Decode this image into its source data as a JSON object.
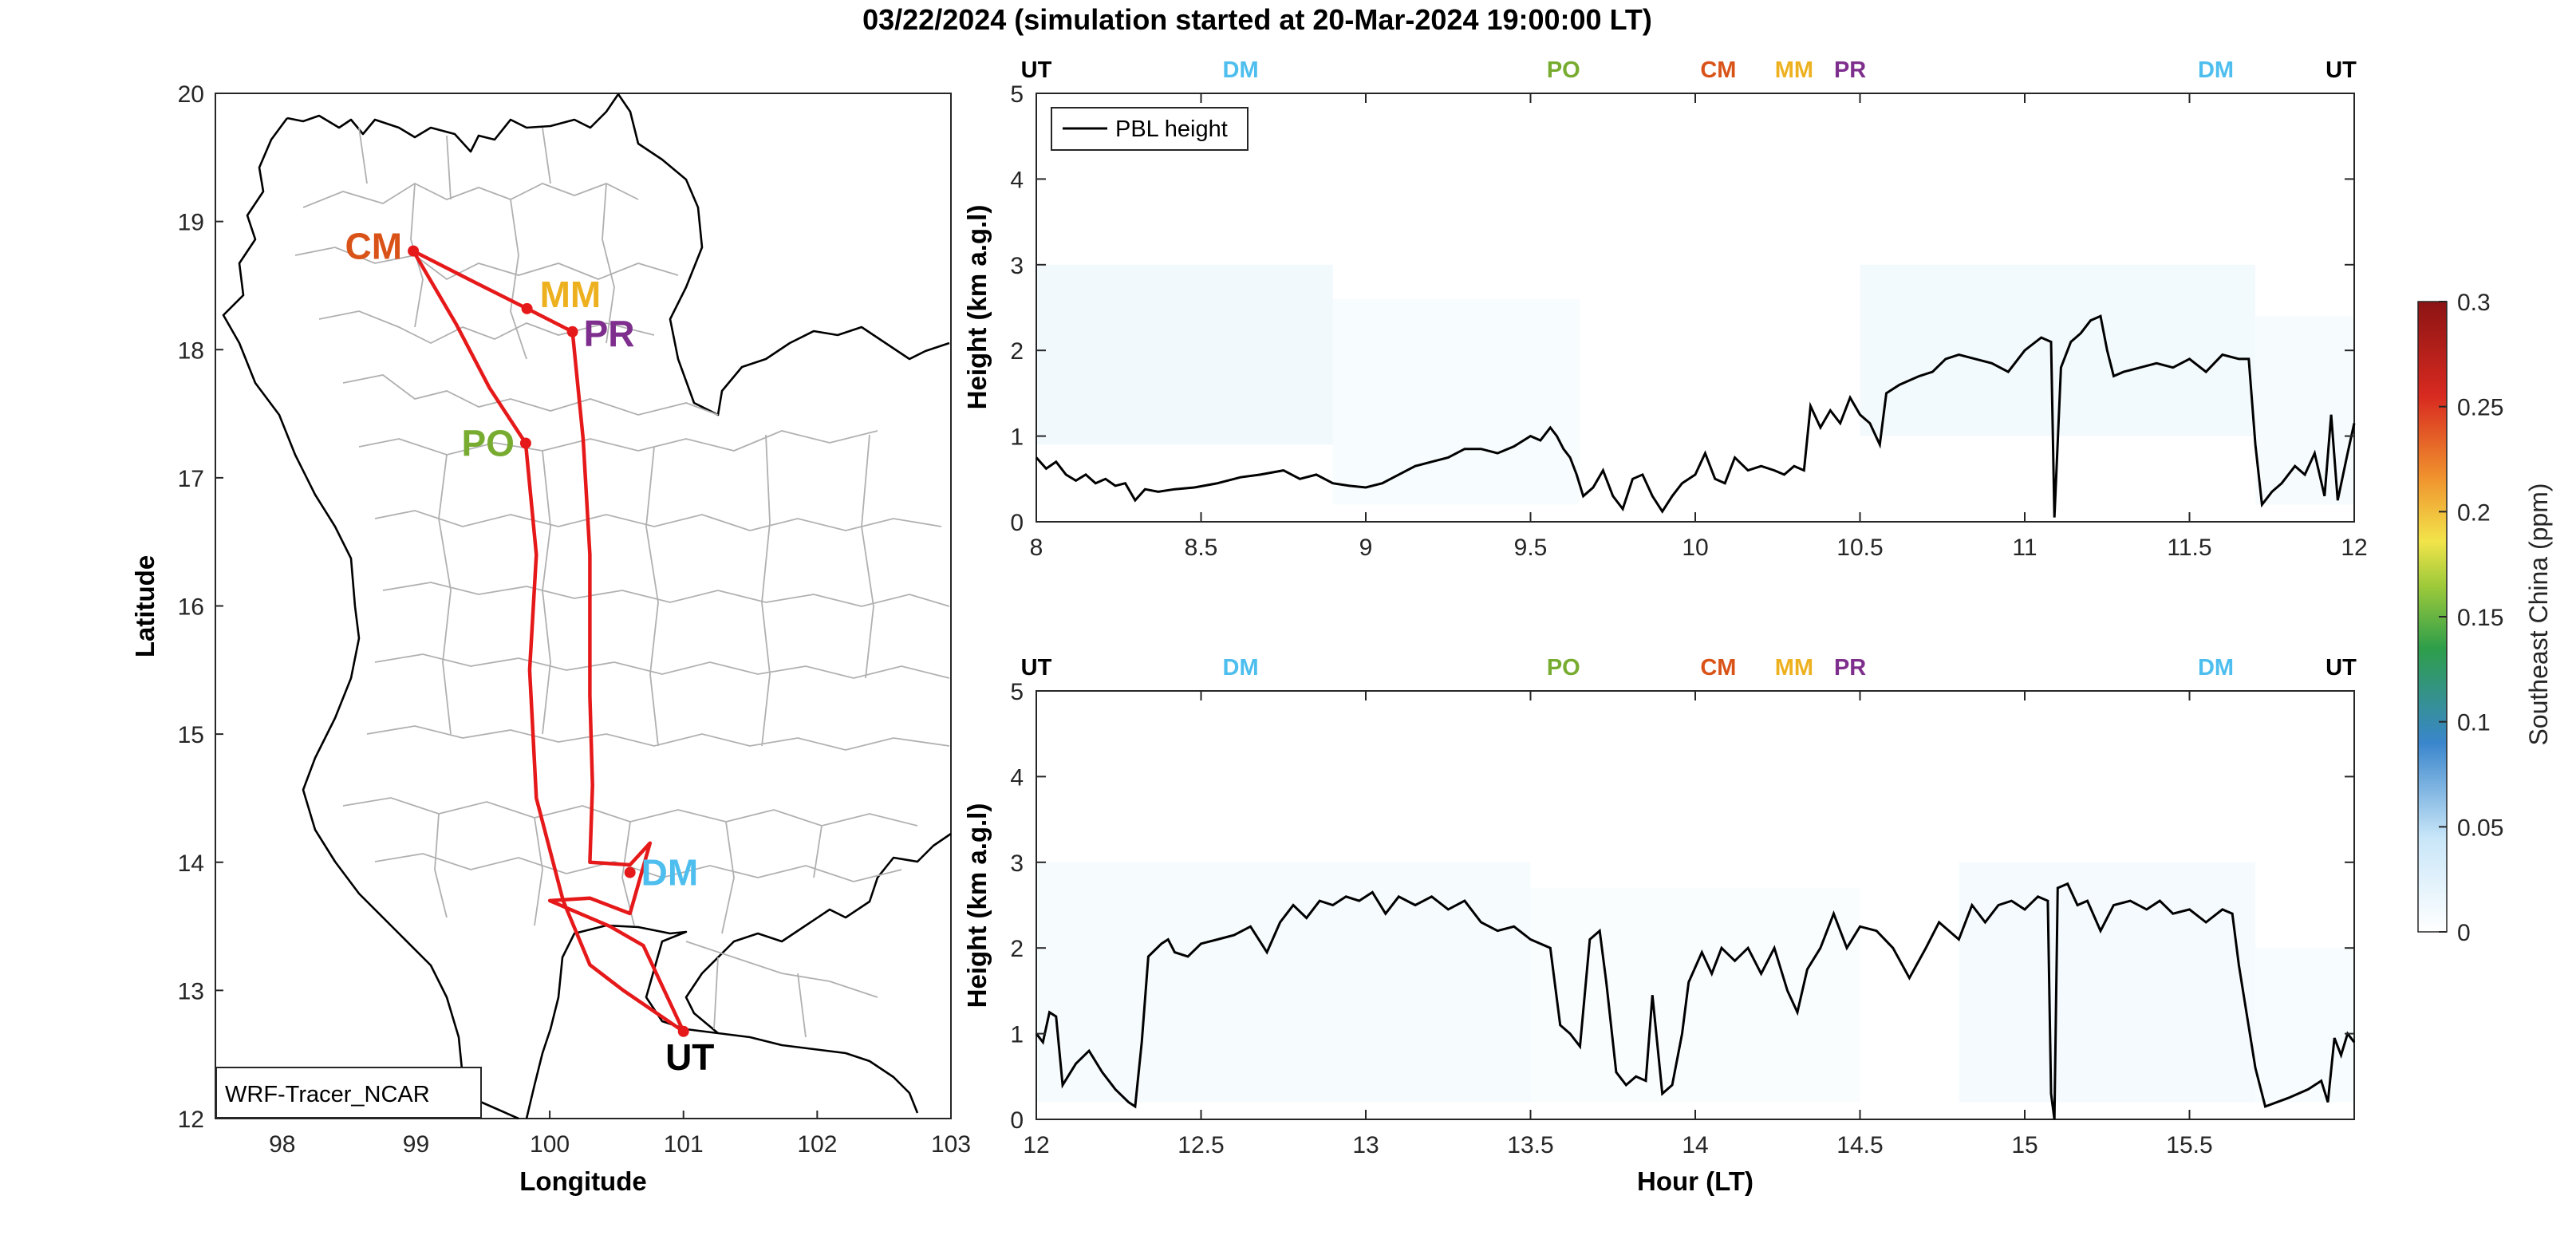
{
  "title": "03/22/2024 (simulation started at 20-Mar-2024 19:00:00 LT)",
  "colors": {
    "CM": "#D95319",
    "MM": "#EDB120",
    "PR": "#7E2F8E",
    "PO": "#77AC30",
    "DM": "#4DBEEE",
    "UT": "#000000",
    "route": "#E6191A",
    "boundary": "#b0b0b0"
  },
  "chart_data": [
    {
      "type": "line",
      "id": "map",
      "xlabel": "Longitude",
      "ylabel": "Latitude",
      "xlim": [
        97.5,
        103
      ],
      "ylim": [
        12,
        20
      ],
      "xticks": [
        98,
        99,
        100,
        101,
        102,
        103
      ],
      "yticks": [
        12,
        13,
        14,
        15,
        16,
        17,
        18,
        19,
        20
      ],
      "annotation": "WRF-Tracer_NCAR",
      "sites": [
        {
          "name": "CM",
          "lon": 98.98,
          "lat": 18.77
        },
        {
          "name": "MM",
          "lon": 99.83,
          "lat": 18.32
        },
        {
          "name": "PR",
          "lon": 100.17,
          "lat": 18.14
        },
        {
          "name": "PO",
          "lon": 99.82,
          "lat": 17.27
        },
        {
          "name": "DM",
          "lon": 100.6,
          "lat": 13.92
        },
        {
          "name": "UT",
          "lon": 101.0,
          "lat": 12.68
        }
      ],
      "route": [
        [
          101.0,
          12.68
        ],
        [
          100.55,
          13.0
        ],
        [
          100.3,
          13.2
        ],
        [
          100.1,
          13.7
        ],
        [
          99.9,
          14.5
        ],
        [
          99.85,
          15.5
        ],
        [
          99.9,
          16.4
        ],
        [
          99.82,
          17.27
        ],
        [
          99.55,
          17.7
        ],
        [
          99.3,
          18.2
        ],
        [
          98.98,
          18.77
        ],
        [
          99.45,
          18.52
        ],
        [
          99.83,
          18.32
        ],
        [
          100.17,
          18.14
        ],
        [
          100.25,
          17.3
        ],
        [
          100.3,
          16.4
        ],
        [
          100.3,
          15.3
        ],
        [
          100.32,
          14.6
        ],
        [
          100.3,
          14.0
        ],
        [
          100.6,
          13.98
        ],
        [
          100.75,
          14.15
        ],
        [
          100.6,
          13.6
        ],
        [
          100.3,
          13.72
        ],
        [
          100.0,
          13.7
        ],
        [
          100.45,
          13.5
        ],
        [
          100.7,
          13.35
        ],
        [
          101.0,
          12.68
        ]
      ]
    },
    {
      "type": "heatmap",
      "id": "curtain-1",
      "xlabel": "",
      "ylabel": "Height (km a.g.l)",
      "xlim": [
        8,
        12
      ],
      "ylim": [
        0,
        5
      ],
      "xticks": [
        8,
        8.5,
        9,
        9.5,
        10,
        10.5,
        11,
        11.5,
        12
      ],
      "yticks": [
        0,
        1,
        2,
        3,
        4,
        5
      ],
      "legend": "PBL height",
      "site_marks": [
        {
          "name": "UT",
          "x": 8.0
        },
        {
          "name": "DM",
          "x": 8.62
        },
        {
          "name": "PO",
          "x": 9.6
        },
        {
          "name": "CM",
          "x": 10.07
        },
        {
          "name": "MM",
          "x": 10.3
        },
        {
          "name": "PR",
          "x": 10.47
        },
        {
          "name": "DM",
          "x": 11.58
        },
        {
          "name": "UT",
          "x": 11.96
        }
      ],
      "pbl": [
        [
          8.0,
          0.75
        ],
        [
          8.03,
          0.62
        ],
        [
          8.06,
          0.7
        ],
        [
          8.09,
          0.55
        ],
        [
          8.12,
          0.48
        ],
        [
          8.15,
          0.55
        ],
        [
          8.18,
          0.45
        ],
        [
          8.21,
          0.5
        ],
        [
          8.24,
          0.42
        ],
        [
          8.27,
          0.45
        ],
        [
          8.3,
          0.25
        ],
        [
          8.33,
          0.38
        ],
        [
          8.37,
          0.35
        ],
        [
          8.42,
          0.38
        ],
        [
          8.48,
          0.4
        ],
        [
          8.55,
          0.45
        ],
        [
          8.62,
          0.52
        ],
        [
          8.68,
          0.55
        ],
        [
          8.75,
          0.6
        ],
        [
          8.8,
          0.5
        ],
        [
          8.85,
          0.55
        ],
        [
          8.9,
          0.45
        ],
        [
          8.95,
          0.42
        ],
        [
          9.0,
          0.4
        ],
        [
          9.05,
          0.45
        ],
        [
          9.1,
          0.55
        ],
        [
          9.15,
          0.65
        ],
        [
          9.2,
          0.7
        ],
        [
          9.25,
          0.75
        ],
        [
          9.3,
          0.85
        ],
        [
          9.35,
          0.85
        ],
        [
          9.4,
          0.8
        ],
        [
          9.45,
          0.88
        ],
        [
          9.5,
          1.0
        ],
        [
          9.53,
          0.95
        ],
        [
          9.56,
          1.1
        ],
        [
          9.58,
          1.0
        ],
        [
          9.6,
          0.85
        ],
        [
          9.62,
          0.75
        ],
        [
          9.64,
          0.55
        ],
        [
          9.66,
          0.3
        ],
        [
          9.69,
          0.4
        ],
        [
          9.72,
          0.6
        ],
        [
          9.75,
          0.3
        ],
        [
          9.78,
          0.15
        ],
        [
          9.81,
          0.5
        ],
        [
          9.84,
          0.55
        ],
        [
          9.87,
          0.3
        ],
        [
          9.9,
          0.12
        ],
        [
          9.93,
          0.3
        ],
        [
          9.96,
          0.45
        ],
        [
          10.0,
          0.55
        ],
        [
          10.03,
          0.8
        ],
        [
          10.06,
          0.5
        ],
        [
          10.09,
          0.45
        ],
        [
          10.12,
          0.75
        ],
        [
          10.16,
          0.6
        ],
        [
          10.2,
          0.65
        ],
        [
          10.24,
          0.6
        ],
        [
          10.27,
          0.55
        ],
        [
          10.3,
          0.65
        ],
        [
          10.33,
          0.6
        ],
        [
          10.35,
          1.35
        ],
        [
          10.38,
          1.1
        ],
        [
          10.41,
          1.3
        ],
        [
          10.44,
          1.15
        ],
        [
          10.47,
          1.45
        ],
        [
          10.5,
          1.25
        ],
        [
          10.53,
          1.15
        ],
        [
          10.56,
          0.9
        ],
        [
          10.58,
          1.5
        ],
        [
          10.62,
          1.6
        ],
        [
          10.68,
          1.7
        ],
        [
          10.72,
          1.75
        ],
        [
          10.76,
          1.9
        ],
        [
          10.8,
          1.95
        ],
        [
          10.85,
          1.9
        ],
        [
          10.9,
          1.85
        ],
        [
          10.95,
          1.75
        ],
        [
          11.0,
          2.0
        ],
        [
          11.05,
          2.15
        ],
        [
          11.08,
          2.1
        ],
        [
          11.09,
          0.05
        ],
        [
          11.11,
          1.8
        ],
        [
          11.14,
          2.1
        ],
        [
          11.17,
          2.2
        ],
        [
          11.2,
          2.35
        ],
        [
          11.23,
          2.4
        ],
        [
          11.25,
          2.0
        ],
        [
          11.27,
          1.7
        ],
        [
          11.3,
          1.75
        ],
        [
          11.35,
          1.8
        ],
        [
          11.4,
          1.85
        ],
        [
          11.45,
          1.8
        ],
        [
          11.5,
          1.9
        ],
        [
          11.55,
          1.75
        ],
        [
          11.6,
          1.95
        ],
        [
          11.65,
          1.9
        ],
        [
          11.68,
          1.9
        ],
        [
          11.7,
          0.9
        ],
        [
          11.72,
          0.2
        ],
        [
          11.75,
          0.35
        ],
        [
          11.78,
          0.45
        ],
        [
          11.82,
          0.65
        ],
        [
          11.85,
          0.55
        ],
        [
          11.88,
          0.8
        ],
        [
          11.91,
          0.3
        ],
        [
          11.93,
          1.25
        ],
        [
          11.95,
          0.25
        ],
        [
          11.98,
          0.8
        ],
        [
          12.0,
          1.15
        ]
      ]
    },
    {
      "type": "heatmap",
      "id": "curtain-2",
      "xlabel": "Hour (LT)",
      "ylabel": "Height (km a.g.l)",
      "xlim": [
        12,
        16
      ],
      "ylim": [
        0,
        5
      ],
      "xticks": [
        12,
        12.5,
        13,
        13.5,
        14,
        14.5,
        15,
        15.5
      ],
      "yticks": [
        0,
        1,
        2,
        3,
        4,
        5
      ],
      "site_marks": [
        {
          "name": "UT",
          "x": 12.0
        },
        {
          "name": "DM",
          "x": 12.62
        },
        {
          "name": "PO",
          "x": 13.6
        },
        {
          "name": "CM",
          "x": 14.07
        },
        {
          "name": "MM",
          "x": 14.3
        },
        {
          "name": "PR",
          "x": 14.47
        },
        {
          "name": "DM",
          "x": 15.58
        },
        {
          "name": "UT",
          "x": 15.96
        }
      ],
      "pbl": [
        [
          12.0,
          1.0
        ],
        [
          12.02,
          0.9
        ],
        [
          12.04,
          1.25
        ],
        [
          12.06,
          1.2
        ],
        [
          12.08,
          0.4
        ],
        [
          12.12,
          0.65
        ],
        [
          12.16,
          0.8
        ],
        [
          12.2,
          0.55
        ],
        [
          12.24,
          0.35
        ],
        [
          12.28,
          0.2
        ],
        [
          12.3,
          0.15
        ],
        [
          12.32,
          0.9
        ],
        [
          12.34,
          1.9
        ],
        [
          12.38,
          2.05
        ],
        [
          12.4,
          2.1
        ],
        [
          12.42,
          1.95
        ],
        [
          12.46,
          1.9
        ],
        [
          12.5,
          2.05
        ],
        [
          12.55,
          2.1
        ],
        [
          12.6,
          2.15
        ],
        [
          12.65,
          2.25
        ],
        [
          12.7,
          1.95
        ],
        [
          12.74,
          2.3
        ],
        [
          12.78,
          2.5
        ],
        [
          12.82,
          2.35
        ],
        [
          12.86,
          2.55
        ],
        [
          12.9,
          2.5
        ],
        [
          12.94,
          2.6
        ],
        [
          12.98,
          2.55
        ],
        [
          13.02,
          2.65
        ],
        [
          13.06,
          2.4
        ],
        [
          13.1,
          2.6
        ],
        [
          13.15,
          2.5
        ],
        [
          13.2,
          2.6
        ],
        [
          13.25,
          2.45
        ],
        [
          13.3,
          2.55
        ],
        [
          13.35,
          2.3
        ],
        [
          13.4,
          2.2
        ],
        [
          13.45,
          2.25
        ],
        [
          13.5,
          2.1
        ],
        [
          13.56,
          2.0
        ],
        [
          13.59,
          1.1
        ],
        [
          13.62,
          1.0
        ],
        [
          13.65,
          0.85
        ],
        [
          13.68,
          2.1
        ],
        [
          13.71,
          2.2
        ],
        [
          13.73,
          1.6
        ],
        [
          13.76,
          0.55
        ],
        [
          13.79,
          0.4
        ],
        [
          13.82,
          0.5
        ],
        [
          13.85,
          0.45
        ],
        [
          13.87,
          1.45
        ],
        [
          13.9,
          0.3
        ],
        [
          13.93,
          0.4
        ],
        [
          13.96,
          1.0
        ],
        [
          13.98,
          1.6
        ],
        [
          14.02,
          1.95
        ],
        [
          14.05,
          1.7
        ],
        [
          14.08,
          2.0
        ],
        [
          14.12,
          1.85
        ],
        [
          14.16,
          2.0
        ],
        [
          14.2,
          1.7
        ],
        [
          14.24,
          2.0
        ],
        [
          14.28,
          1.5
        ],
        [
          14.31,
          1.25
        ],
        [
          14.34,
          1.75
        ],
        [
          14.38,
          2.0
        ],
        [
          14.42,
          2.4
        ],
        [
          14.46,
          2.0
        ],
        [
          14.5,
          2.25
        ],
        [
          14.55,
          2.2
        ],
        [
          14.6,
          2.0
        ],
        [
          14.65,
          1.65
        ],
        [
          14.7,
          2.0
        ],
        [
          14.74,
          2.3
        ],
        [
          14.8,
          2.1
        ],
        [
          14.84,
          2.5
        ],
        [
          14.88,
          2.3
        ],
        [
          14.92,
          2.5
        ],
        [
          14.96,
          2.55
        ],
        [
          15.0,
          2.45
        ],
        [
          15.04,
          2.6
        ],
        [
          15.07,
          2.55
        ],
        [
          15.08,
          0.3
        ],
        [
          15.09,
          0.0
        ],
        [
          15.1,
          2.7
        ],
        [
          15.13,
          2.75
        ],
        [
          15.16,
          2.5
        ],
        [
          15.19,
          2.55
        ],
        [
          15.23,
          2.2
        ],
        [
          15.27,
          2.5
        ],
        [
          15.32,
          2.55
        ],
        [
          15.37,
          2.45
        ],
        [
          15.41,
          2.55
        ],
        [
          15.45,
          2.4
        ],
        [
          15.5,
          2.45
        ],
        [
          15.55,
          2.3
        ],
        [
          15.6,
          2.45
        ],
        [
          15.63,
          2.4
        ],
        [
          15.65,
          1.8
        ],
        [
          15.7,
          0.6
        ],
        [
          15.73,
          0.15
        ],
        [
          15.8,
          0.25
        ],
        [
          15.86,
          0.35
        ],
        [
          15.9,
          0.45
        ],
        [
          15.92,
          0.2
        ],
        [
          15.94,
          0.95
        ],
        [
          15.96,
          0.75
        ],
        [
          15.98,
          1.0
        ],
        [
          16.0,
          0.9
        ]
      ]
    },
    {
      "type": "heatmap",
      "id": "colorbar",
      "label": "Southeast China (ppm)",
      "clim": [
        0,
        0.3
      ],
      "ticks": [
        "0",
        "0.05",
        "0.1",
        "0.15",
        "0.2",
        "0.25",
        "0.3"
      ]
    }
  ]
}
